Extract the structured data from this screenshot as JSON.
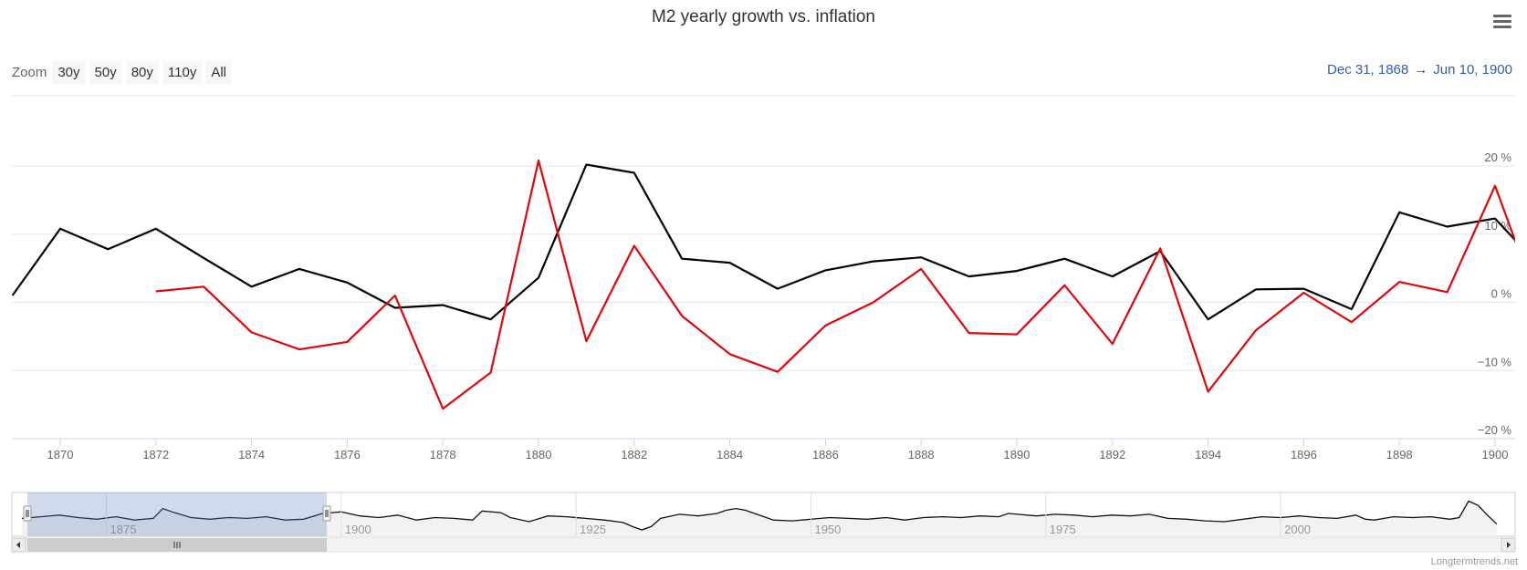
{
  "title": "M2 yearly growth vs. inflation",
  "zoom": {
    "label": "Zoom",
    "buttons": [
      "30y",
      "50y",
      "80y",
      "110y",
      "All"
    ]
  },
  "range": {
    "from": "Dec 31, 1868",
    "arrow": "→",
    "to": "Jun 10, 1900"
  },
  "credits": "Longtermtrends.net",
  "colors": {
    "m2": "#000000",
    "inflation": "#e3050c",
    "navigator_mask": "#c8d3ea",
    "range_text": "#335cad"
  },
  "icons": {
    "menu": "hamburger-menu-icon"
  },
  "chart_data": {
    "type": "line",
    "xlim": [
      1869,
      1900.5
    ],
    "ylim": [
      -20,
      20
    ],
    "y_ticks": [
      -20,
      -10,
      0,
      10,
      20
    ],
    "y_tick_labels": [
      "−20 %",
      "−10 %",
      "0 %",
      "10 %",
      "20 %"
    ],
    "x_ticks": [
      1870,
      1872,
      1874,
      1876,
      1878,
      1880,
      1882,
      1884,
      1886,
      1888,
      1890,
      1892,
      1894,
      1896,
      1898,
      1900
    ],
    "grid": true,
    "legend": "none",
    "series": [
      {
        "color": "#000000",
        "x": [
          1869,
          1870,
          1871,
          1872,
          1873,
          1874,
          1875,
          1876,
          1877,
          1878,
          1879,
          1880,
          1881,
          1882,
          1883,
          1884,
          1885,
          1886,
          1887,
          1888,
          1889,
          1890,
          1891,
          1892,
          1893,
          1894,
          1895,
          1896,
          1897,
          1898,
          1899,
          1900,
          1900.45
        ],
        "y": [
          1.0,
          10.8,
          7.8,
          10.8,
          6.5,
          2.3,
          4.9,
          2.9,
          -0.8,
          -0.4,
          -2.5,
          3.6,
          20.2,
          19.0,
          6.4,
          5.8,
          2.0,
          4.7,
          6.0,
          6.6,
          3.8,
          4.6,
          6.4,
          3.8,
          7.5,
          -2.5,
          1.9,
          2.0,
          -1.0,
          13.2,
          11.1,
          12.3,
          8.9
        ]
      },
      {
        "color": "#e3050c",
        "x": [
          1872,
          1873,
          1874,
          1875,
          1876,
          1877,
          1878,
          1879,
          1880,
          1881,
          1882,
          1883,
          1884,
          1885,
          1886,
          1887,
          1888,
          1889,
          1890,
          1891,
          1892,
          1893,
          1894,
          1895,
          1896,
          1897,
          1898,
          1899,
          1900,
          1900.45
        ],
        "y": [
          1.6,
          2.3,
          -4.4,
          -6.9,
          -5.8,
          1.0,
          -15.6,
          -10.3,
          20.8,
          -5.7,
          8.3,
          -2.0,
          -7.6,
          -10.2,
          -3.4,
          0.0,
          4.9,
          -4.5,
          -4.7,
          2.5,
          -6.1,
          7.9,
          -13.1,
          -4.1,
          1.4,
          -2.9,
          3.0,
          1.5,
          17.1,
          8.5
        ]
      }
    ],
    "navigator": {
      "x_ticks": [
        1875,
        1900,
        1925,
        1950,
        1975,
        2000
      ],
      "selected_range": [
        1868,
        1900.5
      ],
      "x_min": 1866.4,
      "x_max": 2023.5,
      "x": [
        1866,
        1868,
        1870,
        1872,
        1874,
        1876,
        1878,
        1880,
        1881,
        1882,
        1884,
        1886,
        1888,
        1890,
        1892,
        1894,
        1896,
        1898,
        1899,
        1900,
        1902,
        1904,
        1906,
        1908,
        1910,
        1912,
        1914,
        1915,
        1917,
        1918,
        1920,
        1922,
        1924,
        1926,
        1928,
        1930,
        1931,
        1932,
        1933,
        1934,
        1936,
        1938,
        1940,
        1941,
        1942,
        1943,
        1944,
        1946,
        1948,
        1950,
        1952,
        1954,
        1956,
        1958,
        1960,
        1962,
        1964,
        1966,
        1968,
        1970,
        1971,
        1972,
        1974,
        1976,
        1978,
        1980,
        1982,
        1984,
        1986,
        1988,
        1990,
        1992,
        1994,
        1996,
        1998,
        2000,
        2002,
        2004,
        2006,
        2008,
        2009,
        2010,
        2012,
        2014,
        2016,
        2018,
        2019,
        2020,
        2021,
        2022,
        2023
      ],
      "y": [
        4,
        6,
        8,
        5,
        3,
        6,
        2,
        4,
        16,
        12,
        5,
        3,
        5,
        4,
        6,
        2,
        3,
        10,
        11,
        12,
        7,
        5,
        8,
        2,
        5,
        4,
        2,
        13,
        11,
        5,
        0,
        7,
        6,
        4,
        2,
        -1,
        -6,
        -10,
        -6,
        4,
        9,
        7,
        10,
        14,
        16,
        14,
        10,
        2,
        1,
        3,
        5,
        4,
        3,
        5,
        2,
        5,
        6,
        5,
        7,
        6,
        10,
        9,
        7,
        9,
        8,
        6,
        8,
        7,
        9,
        4,
        3,
        1,
        0,
        3,
        6,
        5,
        7,
        5,
        4,
        8,
        3,
        2,
        6,
        5,
        6,
        3,
        5,
        25,
        20,
        8,
        -3
      ]
    }
  }
}
